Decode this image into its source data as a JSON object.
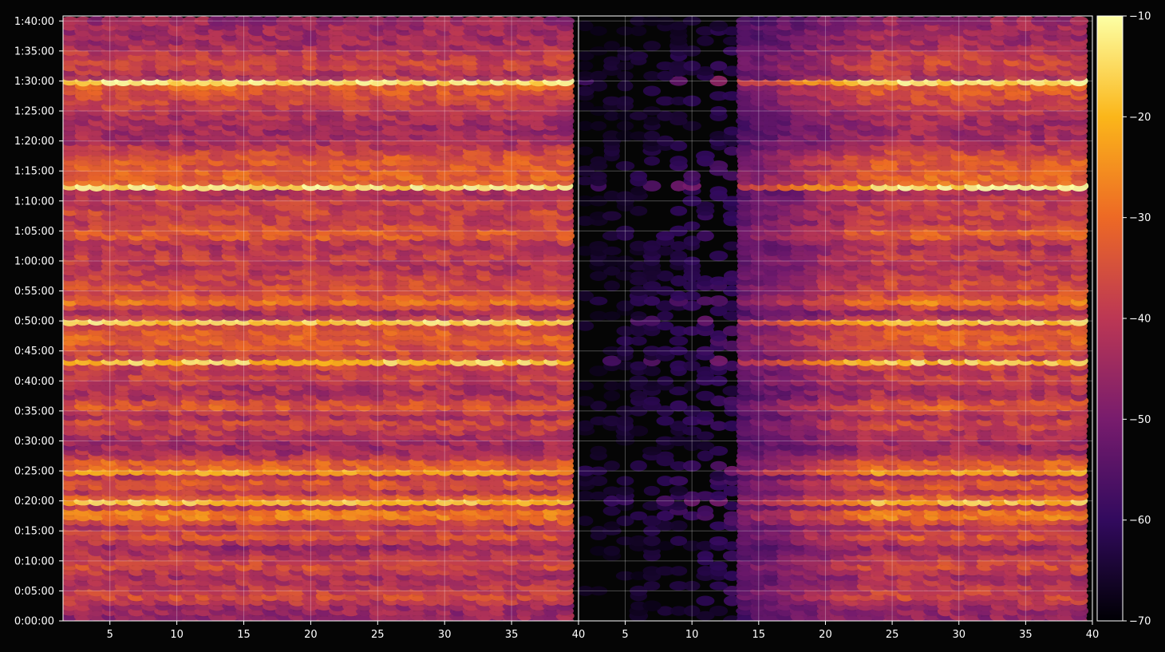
{
  "chart_data": {
    "type": "heatmap",
    "panels": [
      {
        "name": "",
        "x_range": [
          1.5,
          40
        ],
        "x_ticks": [
          5,
          10,
          15,
          20,
          25,
          30,
          35,
          40
        ],
        "x_tick_labels": [
          "5",
          "10",
          "15",
          "20",
          "25",
          "30",
          "35",
          "40"
        ]
      },
      {
        "name": "",
        "x_range": [
          1.5,
          40
        ],
        "x_ticks": [
          5,
          10,
          15,
          20,
          25,
          30,
          35,
          40
        ],
        "x_tick_labels": [
          "5",
          "10",
          "15",
          "20",
          "25",
          "30",
          "35",
          "40"
        ]
      }
    ],
    "y_range_seconds": [
      0,
      6050
    ],
    "y_ticks_seconds": [
      0,
      300,
      600,
      900,
      1200,
      1500,
      1800,
      2100,
      2400,
      2700,
      3000,
      3300,
      3600,
      3900,
      4200,
      4500,
      4800,
      5100,
      5400,
      5700,
      6000
    ],
    "y_tick_labels": [
      "0:00:00",
      "0:05:00",
      "0:10:00",
      "0:15:00",
      "0:20:00",
      "0:25:00",
      "0:30:00",
      "0:35:00",
      "0:40:00",
      "0:45:00",
      "0:50:00",
      "0:55:00",
      "1:00:00",
      "1:05:00",
      "1:10:00",
      "1:15:00",
      "1:20:00",
      "1:25:00",
      "1:30:00",
      "1:35:00",
      "1:40:00"
    ],
    "colorbar": {
      "colormap": "inferno",
      "range": [
        -70,
        -10
      ],
      "ticks": [
        -10,
        -20,
        -30,
        -40,
        -50,
        -60,
        -70
      ],
      "tick_labels": [
        "−10",
        "−20",
        "−30",
        "−40",
        "−50",
        "−60",
        "−70"
      ]
    },
    "grid": true,
    "background": "#050505",
    "row_profile": [
      [
        50,
        -46
      ],
      [
        150,
        -44
      ],
      [
        250,
        -36
      ],
      [
        350,
        -40
      ],
      [
        450,
        -43
      ],
      [
        550,
        -36
      ],
      [
        650,
        -40
      ],
      [
        750,
        -45
      ],
      [
        850,
        -34
      ],
      [
        950,
        -41
      ],
      [
        1080,
        -24
      ],
      [
        1150,
        -40
      ],
      [
        1230,
        -29
      ],
      [
        1300,
        -40
      ],
      [
        1380,
        -31
      ],
      [
        1460,
        -42
      ],
      [
        1580,
        -29
      ],
      [
        1650,
        -40
      ],
      [
        1730,
        -45
      ],
      [
        1830,
        -43
      ],
      [
        1990,
        -36
      ],
      [
        2050,
        -42
      ],
      [
        2110,
        -38
      ],
      [
        2160,
        -31
      ],
      [
        2250,
        -42
      ],
      [
        2350,
        -42
      ],
      [
        2420,
        -37
      ],
      [
        2500,
        -40
      ],
      [
        2520,
        -33
      ],
      [
        2590,
        -42
      ],
      [
        2660,
        -38
      ],
      [
        3200,
        -28
      ],
      [
        3270,
        -36
      ],
      [
        3360,
        -36
      ],
      [
        3550,
        -41
      ],
      [
        3590,
        -40
      ],
      [
        3650,
        -38
      ],
      [
        3780,
        -42
      ],
      [
        3830,
        -35
      ],
      [
        3870,
        -31
      ],
      [
        4020,
        -40
      ],
      [
        4080,
        -36
      ],
      [
        4150,
        -39
      ],
      [
        4210,
        -38
      ],
      [
        4330,
        -34
      ],
      [
        4390,
        -32
      ],
      [
        4460,
        -31
      ],
      [
        4530,
        -34
      ],
      [
        4620,
        -32
      ],
      [
        4780,
        -42
      ],
      [
        4980,
        -44
      ],
      [
        5220,
        -37
      ],
      [
        5350,
        -32
      ],
      [
        5460,
        -43
      ],
      [
        5580,
        -36
      ],
      [
        5720,
        -41
      ],
      [
        5780,
        -44
      ],
      [
        5850,
        -44
      ],
      [
        5920,
        -44
      ],
      [
        6000,
        -45
      ],
      [
        2980,
        -36
      ],
      [
        2900,
        -33
      ],
      [
        2820,
        -31
      ],
      [
        3110,
        -43
      ],
      [
        4290,
        -44
      ],
      [
        4860,
        -44
      ]
    ],
    "row_peaks": [
      [
        5400,
        -13
      ],
      [
        4350,
        -13
      ],
      [
        2990,
        -16
      ],
      [
        2620,
        -17
      ],
      [
        1200,
        -19
      ],
      [
        1500,
        -23
      ]
    ]
  },
  "colors": {
    "axes": "#ffffff",
    "grid": "rgba(255,255,255,0.28)",
    "colormap_stops": [
      "#000004",
      "#320a5e",
      "#781c6d",
      "#bc3754",
      "#ed6925",
      "#fbb61a",
      "#fcffa4"
    ]
  }
}
